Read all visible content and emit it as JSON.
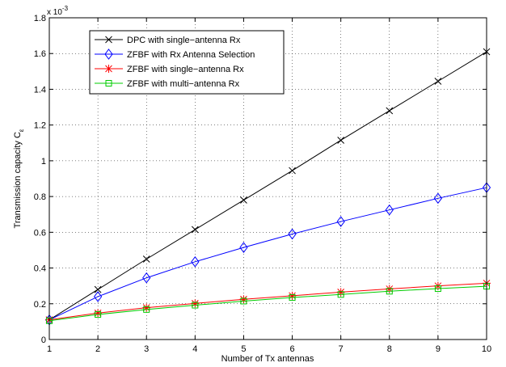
{
  "chart_data": {
    "type": "line",
    "title": "",
    "xlabel": "Number of Tx antennas",
    "ylabel": "Transmission capacity C",
    "ylabel_subscript": "ε",
    "y_exponent_label": "x 10",
    "y_exponent_power": "-3",
    "x": [
      1,
      2,
      3,
      4,
      5,
      6,
      7,
      8,
      9,
      10
    ],
    "xlim": [
      1,
      10
    ],
    "ylim": [
      0,
      1.8
    ],
    "xticks": [
      "1",
      "2",
      "3",
      "4",
      "5",
      "6",
      "7",
      "8",
      "9",
      "10"
    ],
    "yticks": [
      "0",
      "0.2",
      "0.4",
      "0.6",
      "0.8",
      "1",
      "1.2",
      "1.4",
      "1.6",
      "1.8"
    ],
    "ytick_values": [
      0,
      0.2,
      0.4,
      0.6,
      0.8,
      1.0,
      1.2,
      1.4,
      1.6,
      1.8
    ],
    "grid": true,
    "legend_position": "top-left",
    "series": [
      {
        "name": "DPC with single−antenna Rx",
        "color": "#000000",
        "marker": "x",
        "values": [
          0.11,
          0.28,
          0.45,
          0.615,
          0.78,
          0.945,
          1.115,
          1.28,
          1.445,
          1.61
        ]
      },
      {
        "name": "ZFBF with Rx Antenna Selection",
        "color": "#0000ff",
        "marker": "diamond",
        "values": [
          0.11,
          0.24,
          0.345,
          0.435,
          0.515,
          0.59,
          0.66,
          0.725,
          0.79,
          0.85
        ]
      },
      {
        "name": "ZFBF with single−antenna Rx",
        "color": "#ff0000",
        "marker": "star",
        "values": [
          0.11,
          0.148,
          0.178,
          0.202,
          0.225,
          0.245,
          0.265,
          0.283,
          0.3,
          0.315
        ]
      },
      {
        "name": "ZFBF with multi−antenna Rx",
        "color": "#00cc00",
        "marker": "square",
        "values": [
          0.105,
          0.14,
          0.168,
          0.192,
          0.215,
          0.235,
          0.252,
          0.27,
          0.285,
          0.298
        ]
      }
    ]
  }
}
